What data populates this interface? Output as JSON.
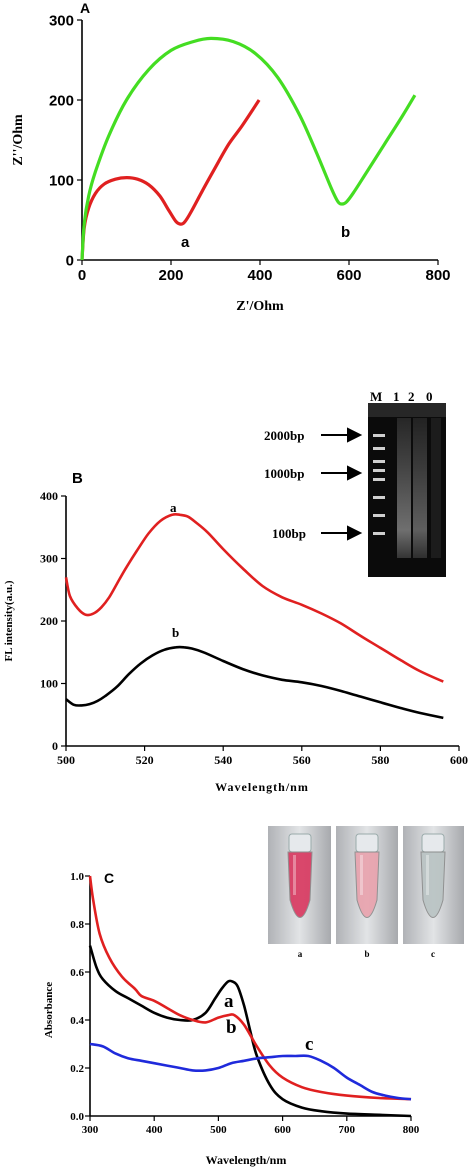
{
  "chart_data": [
    {
      "type": "line",
      "panel_label": "A",
      "xlabel": "Z'/Ohm",
      "ylabel": "Z''/Ohm",
      "xlim": [
        0,
        800
      ],
      "ylim": [
        0,
        300
      ],
      "xticks": [
        0,
        200,
        400,
        600,
        800
      ],
      "yticks": [
        0,
        100,
        200,
        300
      ],
      "colors": {
        "a": "#e02020",
        "b": "#44dd22"
      },
      "series": [
        {
          "name": "a",
          "x": [
            0,
            5,
            15,
            30,
            50,
            75,
            100,
            125,
            150,
            175,
            195,
            210,
            220,
            230,
            245,
            270,
            300,
            330,
            360,
            398
          ],
          "y": [
            0,
            40,
            65,
            83,
            95,
            101,
            103,
            101,
            94,
            80,
            62,
            49,
            45,
            47,
            60,
            86,
            116,
            145,
            168,
            200
          ]
        },
        {
          "name": "b",
          "x": [
            0,
            5,
            15,
            30,
            60,
            100,
            150,
            200,
            250,
            290,
            340,
            390,
            440,
            490,
            530,
            560,
            575,
            585,
            595,
            610,
            640,
            680,
            720,
            748
          ],
          "y": [
            0,
            45,
            80,
            110,
            155,
            200,
            238,
            262,
            273,
            277,
            273,
            258,
            228,
            180,
            130,
            90,
            73,
            70,
            73,
            84,
            110,
            145,
            180,
            206
          ]
        }
      ],
      "point_labels": [
        "a",
        "b"
      ]
    },
    {
      "type": "line",
      "panel_label": "B",
      "xlabel": "Wavelength/nm",
      "ylabel": "FL intensity(a.u.)",
      "xlim": [
        500,
        600
      ],
      "ylim": [
        0,
        400
      ],
      "xticks": [
        500,
        520,
        540,
        560,
        580,
        600
      ],
      "yticks": [
        0,
        100,
        200,
        300,
        400
      ],
      "colors": {
        "a": "#e02020",
        "b": "#000000"
      },
      "series": [
        {
          "name": "a",
          "x": [
            500,
            501,
            503,
            505,
            507,
            509,
            511,
            513,
            515,
            518,
            521,
            524,
            527,
            529,
            531,
            533,
            536,
            540,
            545,
            550,
            555,
            560,
            565,
            570,
            575,
            580,
            585,
            590,
            596
          ],
          "y": [
            270,
            240,
            220,
            210,
            212,
            222,
            238,
            260,
            282,
            312,
            340,
            360,
            370,
            370,
            367,
            358,
            342,
            315,
            284,
            256,
            238,
            226,
            212,
            196,
            176,
            157,
            138,
            120,
            103
          ]
        },
        {
          "name": "b",
          "x": [
            500,
            502,
            504,
            506,
            508,
            510,
            513,
            516,
            519,
            522,
            525,
            528,
            530,
            532,
            535,
            540,
            545,
            550,
            555,
            560,
            565,
            570,
            575,
            580,
            585,
            590,
            596
          ],
          "y": [
            75,
            66,
            65,
            67,
            72,
            80,
            95,
            115,
            132,
            145,
            154,
            158,
            158,
            156,
            150,
            136,
            123,
            113,
            106,
            102,
            96,
            88,
            79,
            70,
            61,
            53,
            45
          ]
        }
      ],
      "point_labels": [
        "a",
        "b"
      ],
      "inset_gel": {
        "lane_labels": [
          "M",
          "1",
          "2",
          "0"
        ],
        "markers": [
          "2000bp",
          "1000bp",
          "100bp"
        ]
      }
    },
    {
      "type": "line",
      "panel_label": "C",
      "xlabel": "Wavelength/nm",
      "ylabel": "Absorbance",
      "xlim": [
        300,
        800
      ],
      "ylim": [
        0,
        1.0
      ],
      "xticks": [
        300,
        400,
        500,
        600,
        700,
        800
      ],
      "yticks": [
        "0.0",
        "0.2",
        "0.4",
        "0.6",
        "0.8",
        "1.0"
      ],
      "colors": {
        "a": "#000000",
        "b": "#e02020",
        "c": "#1f2adb"
      },
      "series": [
        {
          "name": "a",
          "x": [
            300,
            310,
            320,
            340,
            360,
            380,
            400,
            420,
            440,
            460,
            480,
            495,
            505,
            515,
            522,
            530,
            540,
            550,
            560,
            580,
            600,
            630,
            660,
            700,
            750,
            800
          ],
          "y": [
            0.71,
            0.62,
            0.57,
            0.52,
            0.49,
            0.46,
            0.43,
            0.41,
            0.4,
            0.4,
            0.43,
            0.49,
            0.53,
            0.56,
            0.56,
            0.54,
            0.46,
            0.35,
            0.25,
            0.13,
            0.07,
            0.035,
            0.02,
            0.01,
            0.005,
            0.0
          ]
        },
        {
          "name": "b",
          "x": [
            300,
            305,
            315,
            330,
            350,
            370,
            380,
            400,
            420,
            440,
            460,
            480,
            500,
            515,
            525,
            540,
            560,
            580,
            600,
            630,
            660,
            700,
            750,
            800
          ],
          "y": [
            1.0,
            0.9,
            0.76,
            0.66,
            0.58,
            0.53,
            0.5,
            0.48,
            0.45,
            0.42,
            0.4,
            0.39,
            0.41,
            0.42,
            0.42,
            0.38,
            0.29,
            0.21,
            0.16,
            0.12,
            0.1,
            0.085,
            0.075,
            0.07
          ]
        },
        {
          "name": "c",
          "x": [
            300,
            320,
            340,
            360,
            380,
            400,
            420,
            440,
            460,
            480,
            500,
            520,
            540,
            560,
            580,
            600,
            620,
            640,
            660,
            680,
            700,
            720,
            740,
            760,
            780,
            800
          ],
          "y": [
            0.3,
            0.29,
            0.26,
            0.24,
            0.23,
            0.22,
            0.21,
            0.2,
            0.19,
            0.19,
            0.2,
            0.22,
            0.23,
            0.24,
            0.245,
            0.25,
            0.25,
            0.25,
            0.23,
            0.2,
            0.16,
            0.13,
            0.1,
            0.085,
            0.075,
            0.07
          ]
        }
      ],
      "point_labels": [
        "a",
        "b",
        "c"
      ],
      "inset_photos": {
        "labels": [
          "a",
          "b",
          "c"
        ],
        "colors": [
          "#d9375f",
          "#e9a2ad",
          "#b9c3c3"
        ]
      }
    }
  ]
}
